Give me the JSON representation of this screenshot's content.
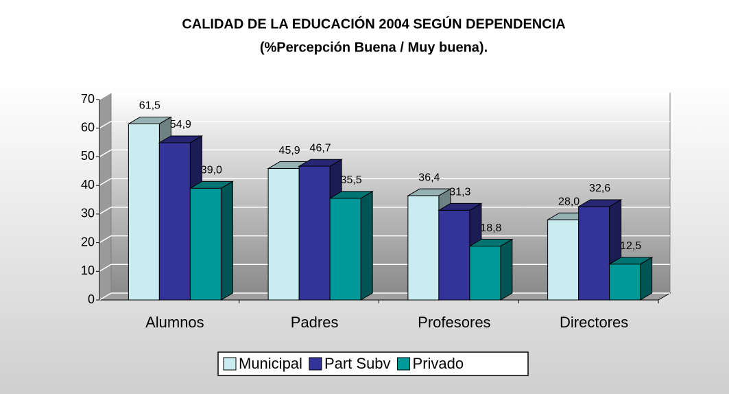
{
  "chart_data": {
    "type": "bar3d",
    "title": "CALIDAD DE LA EDUCACIÓN 2004 SEGÚN DEPENDENCIA",
    "subtitle": "(%Percepción Buena / Muy buena).",
    "categories": [
      "Alumnos",
      "Padres",
      "Profesores",
      "Directores"
    ],
    "series": [
      {
        "name": "Municipal",
        "color": "#c8ecf0",
        "values": [
          61.5,
          45.9,
          36.4,
          28.0
        ],
        "value_labels": [
          "61,5",
          "45,9",
          "36,4",
          "28,0"
        ]
      },
      {
        "name": "Part Subv",
        "color": "#333399",
        "values": [
          54.9,
          46.7,
          31.3,
          32.6
        ],
        "value_labels": [
          "54,9",
          "46,7",
          "31,3",
          "32,6"
        ]
      },
      {
        "name": "Privado",
        "color": "#009999",
        "values": [
          39.0,
          35.5,
          18.8,
          12.5
        ],
        "value_labels": [
          "39,0",
          "35,5",
          "18,8",
          "12,5"
        ]
      }
    ],
    "ylim": [
      0,
      70
    ],
    "yticks": [
      0,
      10,
      20,
      30,
      40,
      50,
      60,
      70
    ],
    "grid": true,
    "legend": "bottom"
  }
}
